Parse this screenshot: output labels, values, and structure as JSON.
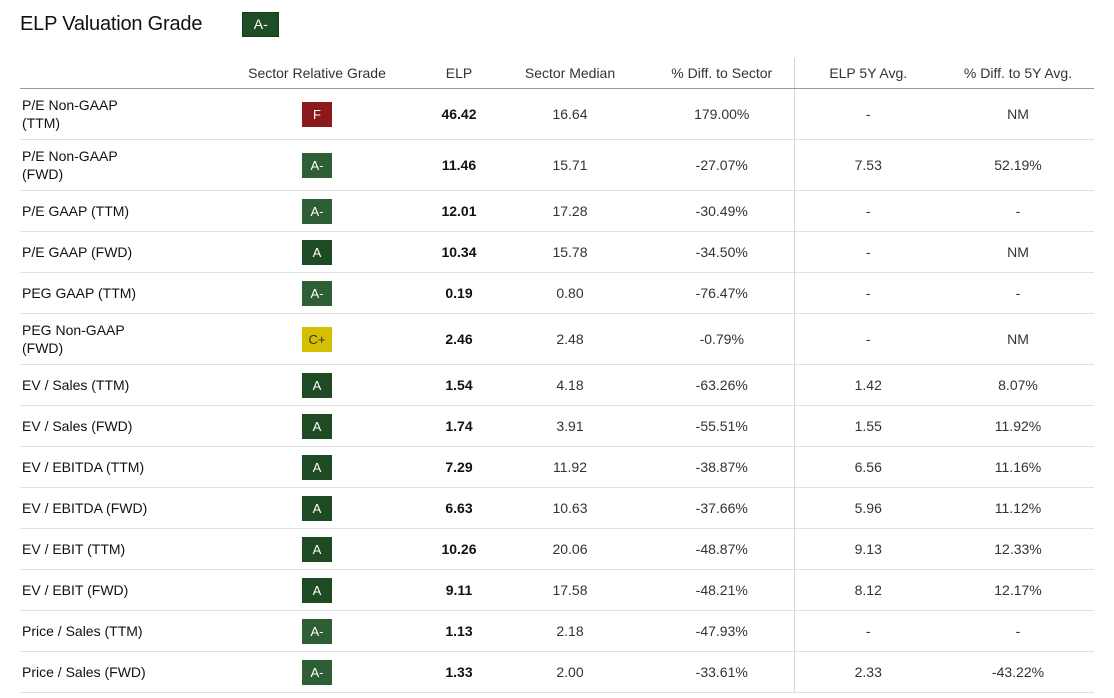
{
  "header": {
    "title": "ELP Valuation Grade",
    "overall_grade": "A-"
  },
  "colors": {
    "grade_a": "#1e4a24",
    "grade_a_minus": "#2e5e33",
    "grade_f": "#8b1a1a",
    "grade_c_plus": "#d4c000"
  },
  "table": {
    "columns": [
      "",
      "Sector Relative Grade",
      "ELP",
      "Sector Median",
      "% Diff. to Sector",
      "ELP 5Y Avg.",
      "% Diff. to 5Y Avg."
    ],
    "rows": [
      {
        "metric": "P/E Non-GAAP\n(TTM)",
        "grade": "F",
        "elp": "46.42",
        "median": "16.64",
        "diff_sector": "179.00%",
        "avg5y": "-",
        "diff_5y": "NM"
      },
      {
        "metric": "P/E Non-GAAP\n(FWD)",
        "grade": "A-",
        "elp": "11.46",
        "median": "15.71",
        "diff_sector": "-27.07%",
        "avg5y": "7.53",
        "diff_5y": "52.19%"
      },
      {
        "metric": "P/E GAAP (TTM)",
        "grade": "A-",
        "elp": "12.01",
        "median": "17.28",
        "diff_sector": "-30.49%",
        "avg5y": "-",
        "diff_5y": "-"
      },
      {
        "metric": "P/E GAAP (FWD)",
        "grade": "A",
        "elp": "10.34",
        "median": "15.78",
        "diff_sector": "-34.50%",
        "avg5y": "-",
        "diff_5y": "NM"
      },
      {
        "metric": "PEG GAAP (TTM)",
        "grade": "A-",
        "elp": "0.19",
        "median": "0.80",
        "diff_sector": "-76.47%",
        "avg5y": "-",
        "diff_5y": "-"
      },
      {
        "metric": "PEG Non-GAAP\n(FWD)",
        "grade": "C+",
        "elp": "2.46",
        "median": "2.48",
        "diff_sector": "-0.79%",
        "avg5y": "-",
        "diff_5y": "NM"
      },
      {
        "metric": "EV / Sales (TTM)",
        "grade": "A",
        "elp": "1.54",
        "median": "4.18",
        "diff_sector": "-63.26%",
        "avg5y": "1.42",
        "diff_5y": "8.07%"
      },
      {
        "metric": "EV / Sales (FWD)",
        "grade": "A",
        "elp": "1.74",
        "median": "3.91",
        "diff_sector": "-55.51%",
        "avg5y": "1.55",
        "diff_5y": "11.92%"
      },
      {
        "metric": "EV / EBITDA (TTM)",
        "grade": "A",
        "elp": "7.29",
        "median": "11.92",
        "diff_sector": "-38.87%",
        "avg5y": "6.56",
        "diff_5y": "11.16%"
      },
      {
        "metric": "EV / EBITDA (FWD)",
        "grade": "A",
        "elp": "6.63",
        "median": "10.63",
        "diff_sector": "-37.66%",
        "avg5y": "5.96",
        "diff_5y": "11.12%"
      },
      {
        "metric": "EV / EBIT (TTM)",
        "grade": "A",
        "elp": "10.26",
        "median": "20.06",
        "diff_sector": "-48.87%",
        "avg5y": "9.13",
        "diff_5y": "12.33%"
      },
      {
        "metric": "EV / EBIT (FWD)",
        "grade": "A",
        "elp": "9.11",
        "median": "17.58",
        "diff_sector": "-48.21%",
        "avg5y": "8.12",
        "diff_5y": "12.17%"
      },
      {
        "metric": "Price / Sales (TTM)",
        "grade": "A-",
        "elp": "1.13",
        "median": "2.18",
        "diff_sector": "-47.93%",
        "avg5y": "-",
        "diff_5y": "-"
      },
      {
        "metric": "Price / Sales (FWD)",
        "grade": "A-",
        "elp": "1.33",
        "median": "2.00",
        "diff_sector": "-33.61%",
        "avg5y": "2.33",
        "diff_5y": "-43.22%"
      }
    ]
  }
}
